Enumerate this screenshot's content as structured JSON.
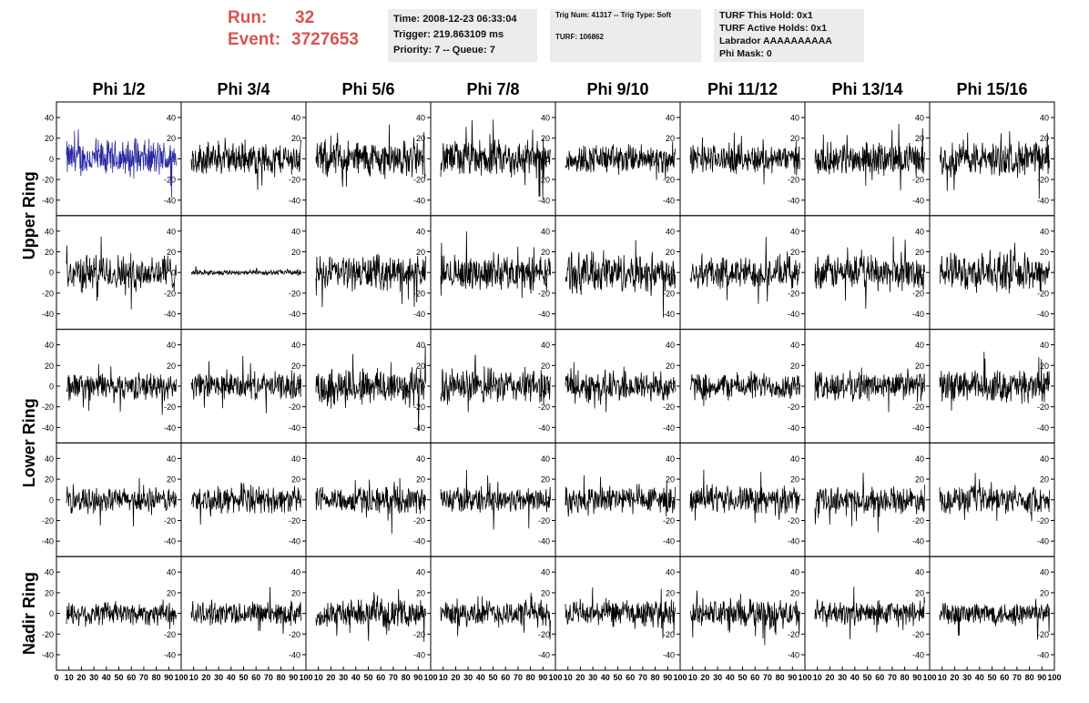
{
  "header": {
    "run_label": "Run:",
    "run_value": "32",
    "event_label": "Event:",
    "event_value": "3727653"
  },
  "info_panel_1": {
    "time": "Time: 2008-12-23 06:33:04",
    "trigger": "Trigger: 219.863109 ms",
    "priority": "Priority: 7 -- Queue: 7"
  },
  "info_panel_2": {
    "trig": "Trig Num: 41317 -- Trig Type: Soft",
    "turf": "TURF: 106862"
  },
  "info_panel_3": {
    "hold": "TURF This Hold: 0x1",
    "active": "TURF Active Holds: 0x1",
    "labrador": "Labrador AAAAAAAAAA",
    "phimask": "Phi Mask: 0"
  },
  "colors": {
    "header_red": "#d9534f",
    "trace": "#000000",
    "highlight_trace": "#2a2aa0",
    "panel_bg": "#ececec"
  },
  "chart_data": {
    "type": "line",
    "columns": [
      "Phi 1/2",
      "Phi 3/4",
      "Phi 5/6",
      "Phi 7/8",
      "Phi 9/10",
      "Phi 11/12",
      "Phi 13/14",
      "Phi 15/16"
    ],
    "rows": [
      "Upper Ring",
      "Upper Ring",
      "Lower Ring",
      "Lower Ring",
      "Nadir Ring"
    ],
    "row_titles": [
      {
        "label": "Upper Ring",
        "spans_rows": [
          0,
          1
        ]
      },
      {
        "label": "Lower Ring",
        "spans_rows": [
          2,
          3
        ]
      },
      {
        "label": "Nadir Ring",
        "spans_rows": [
          4
        ]
      }
    ],
    "xlim": [
      0,
      100
    ],
    "ylim": [
      -55,
      55
    ],
    "x_ticks": [
      "0",
      "10",
      "20",
      "30",
      "40",
      "50",
      "60",
      "70",
      "80",
      "90",
      "100"
    ],
    "y_ticks": [
      -40,
      -20,
      0,
      20,
      40
    ],
    "samples_per_trace": 260,
    "trace_amplitude": [
      [
        14,
        12,
        14,
        14,
        11,
        11,
        12,
        13
      ],
      [
        14,
        2,
        13,
        13,
        15,
        12,
        13,
        14
      ],
      [
        10,
        10,
        15,
        13,
        12,
        10,
        11,
        12
      ],
      [
        9,
        10,
        10,
        10,
        11,
        10,
        10,
        10
      ],
      [
        9,
        9,
        10,
        10,
        10,
        11,
        9,
        9
      ]
    ],
    "highlighted": [
      {
        "row": 0,
        "col": 0,
        "color": "#2a2aa0"
      }
    ]
  }
}
